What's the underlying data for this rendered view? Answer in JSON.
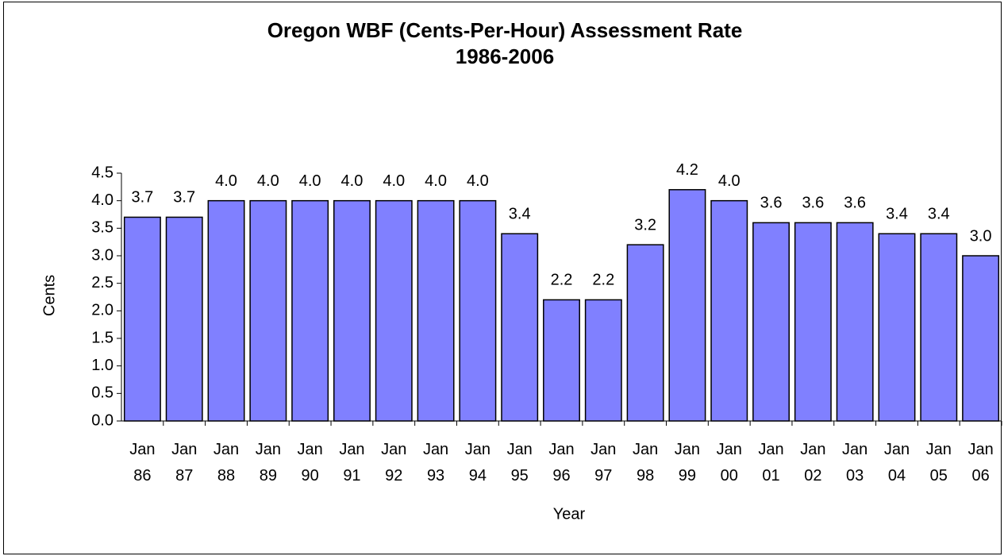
{
  "chart_data": {
    "type": "bar",
    "title": "Oregon WBF (Cents-Per-Hour) Assessment Rate",
    "subtitle": "1986-2006",
    "xlabel": "Year",
    "ylabel": "Cents",
    "categories": [
      "Jan 86",
      "Jan 87",
      "Jan 88",
      "Jan 89",
      "Jan 90",
      "Jan 91",
      "Jan 92",
      "Jan 93",
      "Jan 94",
      "Jan 95",
      "Jan 96",
      "Jan 97",
      "Jan 98",
      "Jan 99",
      "Jan 00",
      "Jan 01",
      "Jan 02",
      "Jan 03",
      "Jan 04",
      "Jan 05",
      "Jan 06"
    ],
    "values": [
      3.7,
      3.7,
      4,
      4,
      4,
      4,
      4,
      4,
      4,
      3.4,
      2.2,
      2.2,
      3.2,
      4.2,
      4,
      3.6,
      3.6,
      3.6,
      3.4,
      3.4,
      3
    ],
    "value_labels": [
      "3.7",
      "3.7",
      "4.0",
      "4.0",
      "4.0",
      "4.0",
      "4.0",
      "4.0",
      "4.0",
      "3.4",
      "2.2",
      "2.2",
      "3.2",
      "4.2",
      "4.0",
      "3.6",
      "3.6",
      "3.6",
      "3.4",
      "3.4",
      "3.0"
    ],
    "color": "#8080ff",
    "ylim": [
      0,
      4.5
    ],
    "yticks": [
      {
        "value": 0,
        "label": "0.0"
      },
      0.5,
      {
        "value": 1,
        "label": "1.0"
      },
      1.5,
      {
        "value": 2,
        "label": "2.0"
      },
      2.5,
      {
        "value": 3,
        "label": "3.0"
      },
      3.5,
      {
        "value": 4,
        "label": "4.0"
      },
      4.5
    ],
    "grid": false
  }
}
